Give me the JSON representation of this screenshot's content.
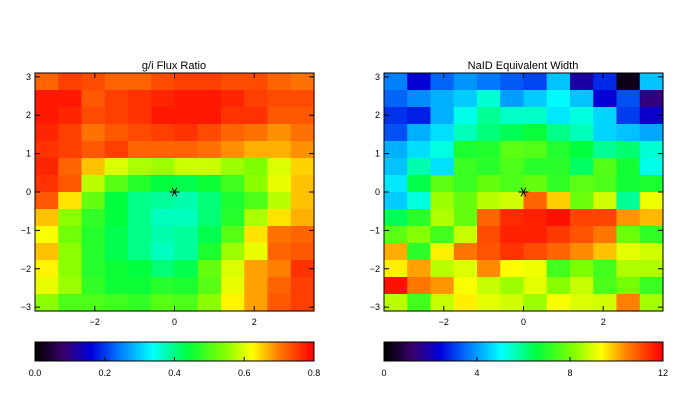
{
  "chart_data": [
    {
      "type": "heatmap",
      "title": "g/i Flux Ratio",
      "xlabel": "",
      "ylabel": "",
      "xlim": [
        -3.5,
        3.5
      ],
      "ylim": [
        -3.1,
        3.1
      ],
      "x_ticks": [
        -2,
        0,
        2
      ],
      "x_tick_labels": [
        "−2",
        "0",
        "2"
      ],
      "y_ticks": [
        3,
        2,
        1,
        0,
        -1,
        -2,
        -3
      ],
      "y_tick_labels": [
        "3",
        "2",
        "1",
        "0",
        "−1",
        "−2",
        "−3"
      ],
      "grid": false,
      "colormap": "rainbow",
      "color_range": [
        0.0,
        0.8
      ],
      "colorbar_ticks": [
        0.0,
        0.2,
        0.4,
        0.6,
        0.8
      ],
      "colorbar_tick_labels": [
        "0.0",
        "0.2",
        "0.4",
        "0.6",
        "0.8"
      ],
      "marker": {
        "x": 0,
        "y": 0,
        "symbol": "asterisk"
      },
      "grid_size": [
        14,
        12
      ],
      "rows_top_to_bottom": [
        [
          0.72,
          0.75,
          0.74,
          0.72,
          0.72,
          0.74,
          0.75,
          0.75,
          0.74,
          0.74,
          0.72,
          0.71
        ],
        [
          0.78,
          0.78,
          0.73,
          0.75,
          0.76,
          0.77,
          0.78,
          0.78,
          0.77,
          0.75,
          0.74,
          0.74
        ],
        [
          0.78,
          0.77,
          0.74,
          0.75,
          0.76,
          0.78,
          0.78,
          0.78,
          0.76,
          0.76,
          0.73,
          0.73
        ],
        [
          0.77,
          0.75,
          0.71,
          0.73,
          0.74,
          0.75,
          0.76,
          0.74,
          0.72,
          0.71,
          0.69,
          0.71
        ],
        [
          0.76,
          0.75,
          0.73,
          0.75,
          0.72,
          0.72,
          0.72,
          0.71,
          0.69,
          0.67,
          0.67,
          0.69
        ],
        [
          0.77,
          0.72,
          0.66,
          0.6,
          0.57,
          0.56,
          0.59,
          0.59,
          0.56,
          0.54,
          0.6,
          0.65
        ],
        [
          0.76,
          0.73,
          0.58,
          0.51,
          0.47,
          0.44,
          0.43,
          0.45,
          0.49,
          0.55,
          0.61,
          0.66
        ],
        [
          0.73,
          0.64,
          0.52,
          0.44,
          0.4,
          0.39,
          0.38,
          0.41,
          0.46,
          0.5,
          0.58,
          0.66
        ],
        [
          0.66,
          0.55,
          0.48,
          0.44,
          0.4,
          0.37,
          0.37,
          0.41,
          0.47,
          0.57,
          0.64,
          0.67
        ],
        [
          0.62,
          0.53,
          0.47,
          0.43,
          0.4,
          0.38,
          0.39,
          0.43,
          0.51,
          0.64,
          0.71,
          0.72
        ],
        [
          0.66,
          0.55,
          0.47,
          0.43,
          0.4,
          0.37,
          0.39,
          0.46,
          0.56,
          0.61,
          0.72,
          0.73
        ],
        [
          0.63,
          0.55,
          0.47,
          0.45,
          0.44,
          0.41,
          0.43,
          0.52,
          0.6,
          0.68,
          0.7,
          0.76
        ],
        [
          0.61,
          0.56,
          0.48,
          0.45,
          0.45,
          0.47,
          0.46,
          0.51,
          0.61,
          0.68,
          0.72,
          0.75
        ],
        [
          0.55,
          0.5,
          0.5,
          0.49,
          0.48,
          0.51,
          0.5,
          0.55,
          0.63,
          0.68,
          0.73,
          0.75
        ]
      ]
    },
    {
      "type": "heatmap",
      "title": "NaID Equivalent Width",
      "xlabel": "",
      "ylabel": "",
      "xlim": [
        -3.5,
        3.5
      ],
      "ylim": [
        -3.1,
        3.1
      ],
      "x_ticks": [
        -2,
        0,
        2
      ],
      "x_tick_labels": [
        "−2",
        "0",
        "2"
      ],
      "y_ticks": [
        3,
        2,
        1,
        0,
        -1,
        -2,
        -3
      ],
      "y_tick_labels": [
        "3",
        "2",
        "1",
        "0",
        "−1",
        "−2",
        "−3"
      ],
      "grid": false,
      "colormap": "rainbow",
      "color_range": [
        0,
        12
      ],
      "colorbar_ticks": [
        0,
        4,
        8,
        12
      ],
      "colorbar_tick_labels": [
        "0",
        "4",
        "8",
        "12"
      ],
      "marker": {
        "x": 0,
        "y": 0,
        "symbol": "asterisk"
      },
      "grid_size": [
        14,
        12
      ],
      "rows_top_to_bottom": [
        [
          3.7,
          2.3,
          3.4,
          3.9,
          3.6,
          3.3,
          3.1,
          4.4,
          1.8,
          2.8,
          0.3,
          4.4
        ],
        [
          3.4,
          3.8,
          4.2,
          4.5,
          5.4,
          4.0,
          4.5,
          5.0,
          4.4,
          2.3,
          3.2,
          1.4
        ],
        [
          2.9,
          2.7,
          4.2,
          5.2,
          5.9,
          5.5,
          5.5,
          4.8,
          5.3,
          4.6,
          3.0,
          2.2
        ],
        [
          3.2,
          4.2,
          4.7,
          5.6,
          6.1,
          6.4,
          6.7,
          6.0,
          5.6,
          4.6,
          4.4,
          4.1
        ],
        [
          4.2,
          4.7,
          5.3,
          6.9,
          7.0,
          7.7,
          7.6,
          7.0,
          6.6,
          5.9,
          6.2,
          5.4
        ],
        [
          4.4,
          5.7,
          4.7,
          7.3,
          7.1,
          7.5,
          7.1,
          7.1,
          6.3,
          7.6,
          6.8,
          5.2
        ],
        [
          4.8,
          6.5,
          7.7,
          7.3,
          7.8,
          7.5,
          7.8,
          7.2,
          7.7,
          7.5,
          6.8,
          6.9
        ],
        [
          4.5,
          5.3,
          8.4,
          7.8,
          8.7,
          8.9,
          10.8,
          9.8,
          7.9,
          8.9,
          5.9,
          9.2
        ],
        [
          6.4,
          7.1,
          8.6,
          7.8,
          10.8,
          11.5,
          11.6,
          11.8,
          11.2,
          11.2,
          10.3,
          10.0
        ],
        [
          7.7,
          8.2,
          7.4,
          8.8,
          11.1,
          11.6,
          11.6,
          11.3,
          11.0,
          10.6,
          7.9,
          7.2
        ],
        [
          10.1,
          7.1,
          9.5,
          10.6,
          11.0,
          11.4,
          11.1,
          10.8,
          10.4,
          9.9,
          9.1,
          8.9
        ],
        [
          9.5,
          10.2,
          8.7,
          9.0,
          10.4,
          9.4,
          9.2,
          7.4,
          8.1,
          7.4,
          8.6,
          8.6
        ],
        [
          11.8,
          10.6,
          10.3,
          9.3,
          8.8,
          8.4,
          9.1,
          8.2,
          8.8,
          7.5,
          8.0,
          7.3
        ],
        [
          8.7,
          7.4,
          8.8,
          9.5,
          9.1,
          8.9,
          8.4,
          9.3,
          9.0,
          8.9,
          10.5,
          8.5
        ]
      ]
    }
  ]
}
